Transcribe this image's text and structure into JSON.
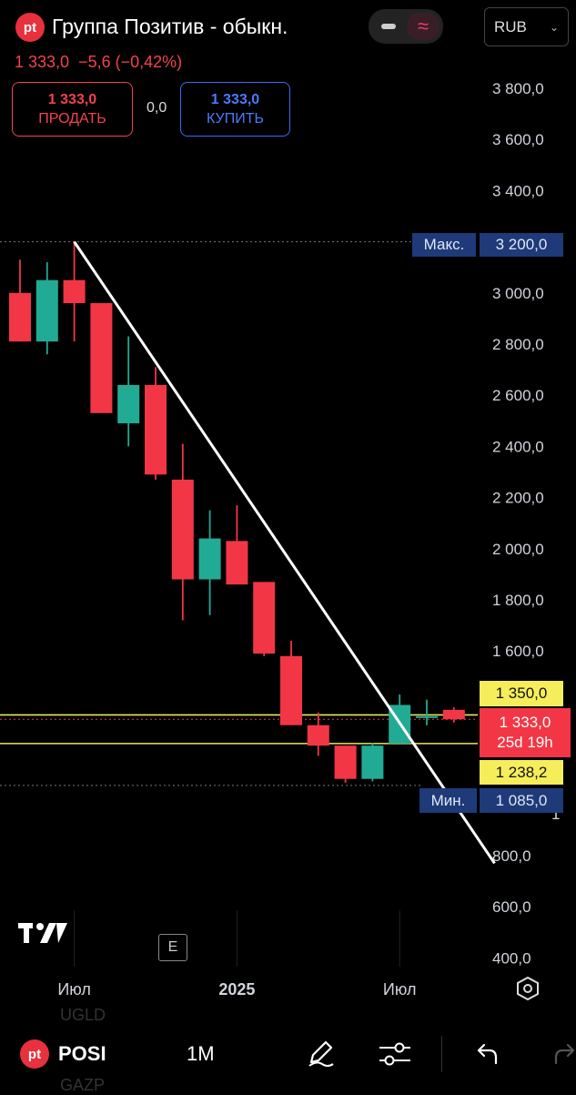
{
  "header": {
    "logo_text": "pt",
    "title": "Группа Позитив - обыкн.",
    "price": "1 333,0",
    "change": "−5,6",
    "change_pct": "(−0,42%)",
    "toggle_left_icon": "minus-icon",
    "toggle_right_icon": "approx-icon",
    "currency": "RUB"
  },
  "trade": {
    "sell_price": "1 333,0",
    "sell_label": "ПРОДАТЬ",
    "spread": "0,0",
    "buy_price": "1 333,0",
    "buy_label": "КУПИТЬ"
  },
  "price_axis": {
    "max_label": "Макс.",
    "max_value": "3 200,0",
    "min_label": "Мин.",
    "min_value": "1 085,0",
    "level_upper": "1 350,0",
    "last_price": "1 333,0",
    "countdown": "25d 19h",
    "level_lower": "1 238,2",
    "partial_tick": "1"
  },
  "chart_data": {
    "type": "candlestick",
    "interval": "1M",
    "ticker": "POSI",
    "y_ticks": [
      "3 800,0",
      "3 600,0",
      "3 400,0",
      "3 200,0",
      "3 000,0",
      "2 800,0",
      "2 600,0",
      "2 400,0",
      "2 200,0",
      "2 000,0",
      "1 800,0",
      "1 600,0",
      "800,0",
      "600,0",
      "400,0"
    ],
    "ylim": [
      400,
      3900
    ],
    "x_labels": [
      "Июл",
      "2025",
      "Июл"
    ],
    "x_label_index": [
      2,
      8,
      14
    ],
    "candles": [
      {
        "o": 3000,
        "h": 3130,
        "l": 2810,
        "c": 2810
      },
      {
        "o": 2810,
        "h": 3120,
        "l": 2760,
        "c": 3050
      },
      {
        "o": 3050,
        "h": 3200,
        "l": 2810,
        "c": 2960
      },
      {
        "o": 2960,
        "h": 2960,
        "l": 2530,
        "c": 2530
      },
      {
        "o": 2490,
        "h": 2830,
        "l": 2400,
        "c": 2640
      },
      {
        "o": 2640,
        "h": 2710,
        "l": 2270,
        "c": 2290
      },
      {
        "o": 2270,
        "h": 2410,
        "l": 1720,
        "c": 1880
      },
      {
        "o": 1880,
        "h": 2150,
        "l": 1740,
        "c": 2040
      },
      {
        "o": 2030,
        "h": 2170,
        "l": 1860,
        "c": 1860
      },
      {
        "o": 1870,
        "h": 1870,
        "l": 1580,
        "c": 1590
      },
      {
        "o": 1580,
        "h": 1640,
        "l": 1310,
        "c": 1310
      },
      {
        "o": 1310,
        "h": 1360,
        "l": 1190,
        "c": 1230
      },
      {
        "o": 1230,
        "h": 1230,
        "l": 1085,
        "c": 1100
      },
      {
        "o": 1100,
        "h": 1240,
        "l": 1090,
        "c": 1230
      },
      {
        "o": 1238,
        "h": 1430,
        "l": 1238,
        "c": 1389
      },
      {
        "o": 1345,
        "h": 1410,
        "l": 1310,
        "c": 1345
      },
      {
        "o": 1370,
        "h": 1380,
        "l": 1320,
        "c": 1333
      }
    ],
    "trendline": {
      "from": {
        "index": 2,
        "value": 3200
      },
      "to": {
        "index": 17.5,
        "value": 770
      }
    },
    "levels": [
      1350.0,
      1238.2
    ],
    "max": 3200.0,
    "min": 1085.0,
    "colors": {
      "up": "#22ab94",
      "down": "#f23645",
      "level": "#e7e766",
      "trend": "#ffffff"
    }
  },
  "bottom": {
    "logo_text": "pt",
    "ticker": "POSI",
    "interval": "1M",
    "ghost_top": "UGLD",
    "ghost_bottom": "GAZP",
    "watermark_logo": "tradingview-logo",
    "e_badge": "E"
  }
}
